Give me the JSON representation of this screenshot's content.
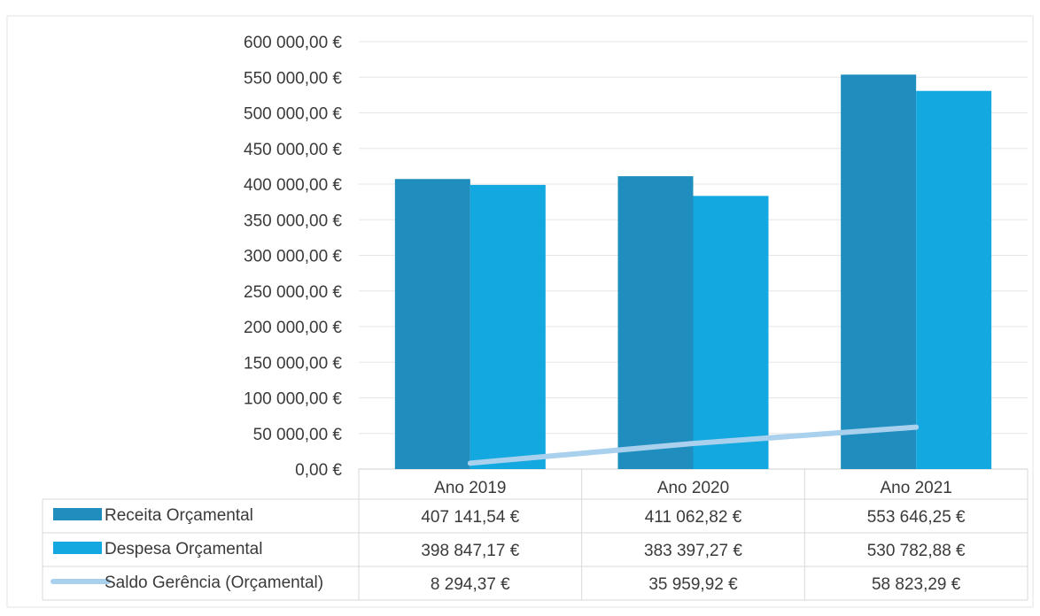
{
  "chart_data": {
    "type": "bar",
    "categories": [
      "Ano 2019",
      "Ano 2020",
      "Ano 2021"
    ],
    "series": [
      {
        "name": "Receita Orçamental",
        "kind": "bar",
        "color": "#1f8dbd",
        "values": [
          407141.54,
          411062.82,
          553646.25
        ],
        "labels": [
          "407 141,54 €",
          "411 062,82 €",
          "553 646,25 €"
        ]
      },
      {
        "name": "Despesa Orçamental",
        "kind": "bar",
        "color": "#14a8e0",
        "values": [
          398847.17,
          383397.27,
          530782.88
        ],
        "labels": [
          "398 847,17 €",
          "383 397,27 €",
          "530 782,88 €"
        ]
      },
      {
        "name": "Saldo Gerência (Orçamental)",
        "kind": "line",
        "color": "#a9d1ee",
        "values": [
          8294.37,
          35959.92,
          58823.29
        ],
        "labels": [
          "8 294,37 €",
          "35 959,92 €",
          "58 823,29 €"
        ]
      }
    ],
    "ylim": [
      0,
      600000
    ],
    "yticks": [
      0,
      50000,
      100000,
      150000,
      200000,
      250000,
      300000,
      350000,
      400000,
      450000,
      500000,
      550000,
      600000
    ],
    "ytick_labels": [
      "0,00 €",
      "50 000,00 €",
      "100 000,00 €",
      "150 000,00 €",
      "200 000,00 €",
      "250 000,00 €",
      "300 000,00 €",
      "350 000,00 €",
      "400 000,00 €",
      "450 000,00 €",
      "500 000,00 €",
      "550 000,00 €",
      "600 000,00 €"
    ],
    "grid": true,
    "legend": "data table below chart"
  }
}
